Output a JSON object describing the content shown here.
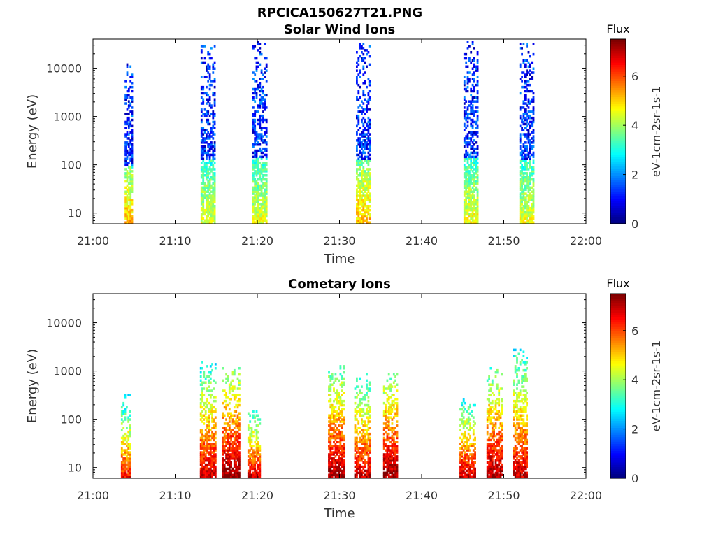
{
  "figure_title": "RPCICA150627T21.PNG",
  "chart_data": [
    {
      "type": "heatmap",
      "title": "Solar Wind Ions",
      "xlabel": "Time",
      "ylabel": "Energy (eV)",
      "x_ticks": [
        "21:00",
        "21:10",
        "21:20",
        "21:30",
        "21:40",
        "21:50",
        "22:00"
      ],
      "xlim": [
        "21:00",
        "22:00"
      ],
      "y_scale": "log",
      "y_ticks": [
        "10",
        "100",
        "1000",
        "10000"
      ],
      "ylim": [
        6,
        40000
      ],
      "colorbar": {
        "title": "Flux",
        "label": "eV-1cm-2sr-1s-1",
        "ticks": [
          "0",
          "2",
          "4",
          "6"
        ],
        "range": [
          0,
          7.5
        ],
        "colormap": "jet"
      },
      "bursts": [
        {
          "time_min": 4.3,
          "width_min": 0.9,
          "top_energy_eV": 12000,
          "base_flux": 4.0,
          "peak_flux": 5.2
        },
        {
          "time_min": 14.0,
          "width_min": 1.8,
          "top_energy_eV": 30000,
          "base_flux": 3.8,
          "peak_flux": 4.5
        },
        {
          "time_min": 20.3,
          "width_min": 1.8,
          "top_energy_eV": 35000,
          "base_flux": 3.8,
          "peak_flux": 4.5
        },
        {
          "time_min": 32.9,
          "width_min": 1.8,
          "top_energy_eV": 30000,
          "base_flux": 4.0,
          "peak_flux": 5.2
        },
        {
          "time_min": 46.0,
          "width_min": 1.8,
          "top_energy_eV": 35000,
          "base_flux": 3.8,
          "peak_flux": 4.6
        },
        {
          "time_min": 52.8,
          "width_min": 1.8,
          "top_energy_eV": 30000,
          "base_flux": 3.8,
          "peak_flux": 4.5
        }
      ]
    },
    {
      "type": "heatmap",
      "title": "Cometary Ions",
      "xlabel": "Time",
      "ylabel": "Energy (eV)",
      "x_ticks": [
        "21:00",
        "21:10",
        "21:20",
        "21:30",
        "21:40",
        "21:50",
        "22:00"
      ],
      "xlim": [
        "21:00",
        "22:00"
      ],
      "y_scale": "log",
      "y_ticks": [
        "10",
        "100",
        "1000",
        "10000"
      ],
      "ylim": [
        6,
        40000
      ],
      "colorbar": {
        "title": "Flux",
        "label": "eV-1cm-2sr-1s-1",
        "ticks": [
          "0",
          "2",
          "4",
          "6"
        ],
        "range": [
          0,
          7.5
        ],
        "colormap": "jet"
      },
      "bursts": [
        {
          "time_min": 4.0,
          "width_min": 1.2,
          "top_energy_eV": 350,
          "base_flux": 5.5,
          "peak_flux": 6.5
        },
        {
          "time_min": 14.0,
          "width_min": 2.0,
          "top_energy_eV": 1500,
          "base_flux": 6.0,
          "peak_flux": 7.0
        },
        {
          "time_min": 16.8,
          "width_min": 2.2,
          "top_energy_eV": 1100,
          "base_flux": 6.8,
          "peak_flux": 7.4
        },
        {
          "time_min": 19.6,
          "width_min": 1.6,
          "top_energy_eV": 150,
          "base_flux": 6.0,
          "peak_flux": 7.0
        },
        {
          "time_min": 29.6,
          "width_min": 2.0,
          "top_energy_eV": 1300,
          "base_flux": 6.5,
          "peak_flux": 7.3
        },
        {
          "time_min": 32.8,
          "width_min": 2.0,
          "top_energy_eV": 800,
          "base_flux": 6.0,
          "peak_flux": 7.0
        },
        {
          "time_min": 36.2,
          "width_min": 1.8,
          "top_energy_eV": 800,
          "base_flux": 6.8,
          "peak_flux": 7.4
        },
        {
          "time_min": 45.6,
          "width_min": 2.0,
          "top_energy_eV": 250,
          "base_flux": 6.0,
          "peak_flux": 7.0
        },
        {
          "time_min": 48.9,
          "width_min": 2.0,
          "top_energy_eV": 1100,
          "base_flux": 6.5,
          "peak_flux": 7.3
        },
        {
          "time_min": 52.0,
          "width_min": 1.8,
          "top_energy_eV": 2800,
          "base_flux": 6.0,
          "peak_flux": 7.0
        }
      ]
    }
  ]
}
